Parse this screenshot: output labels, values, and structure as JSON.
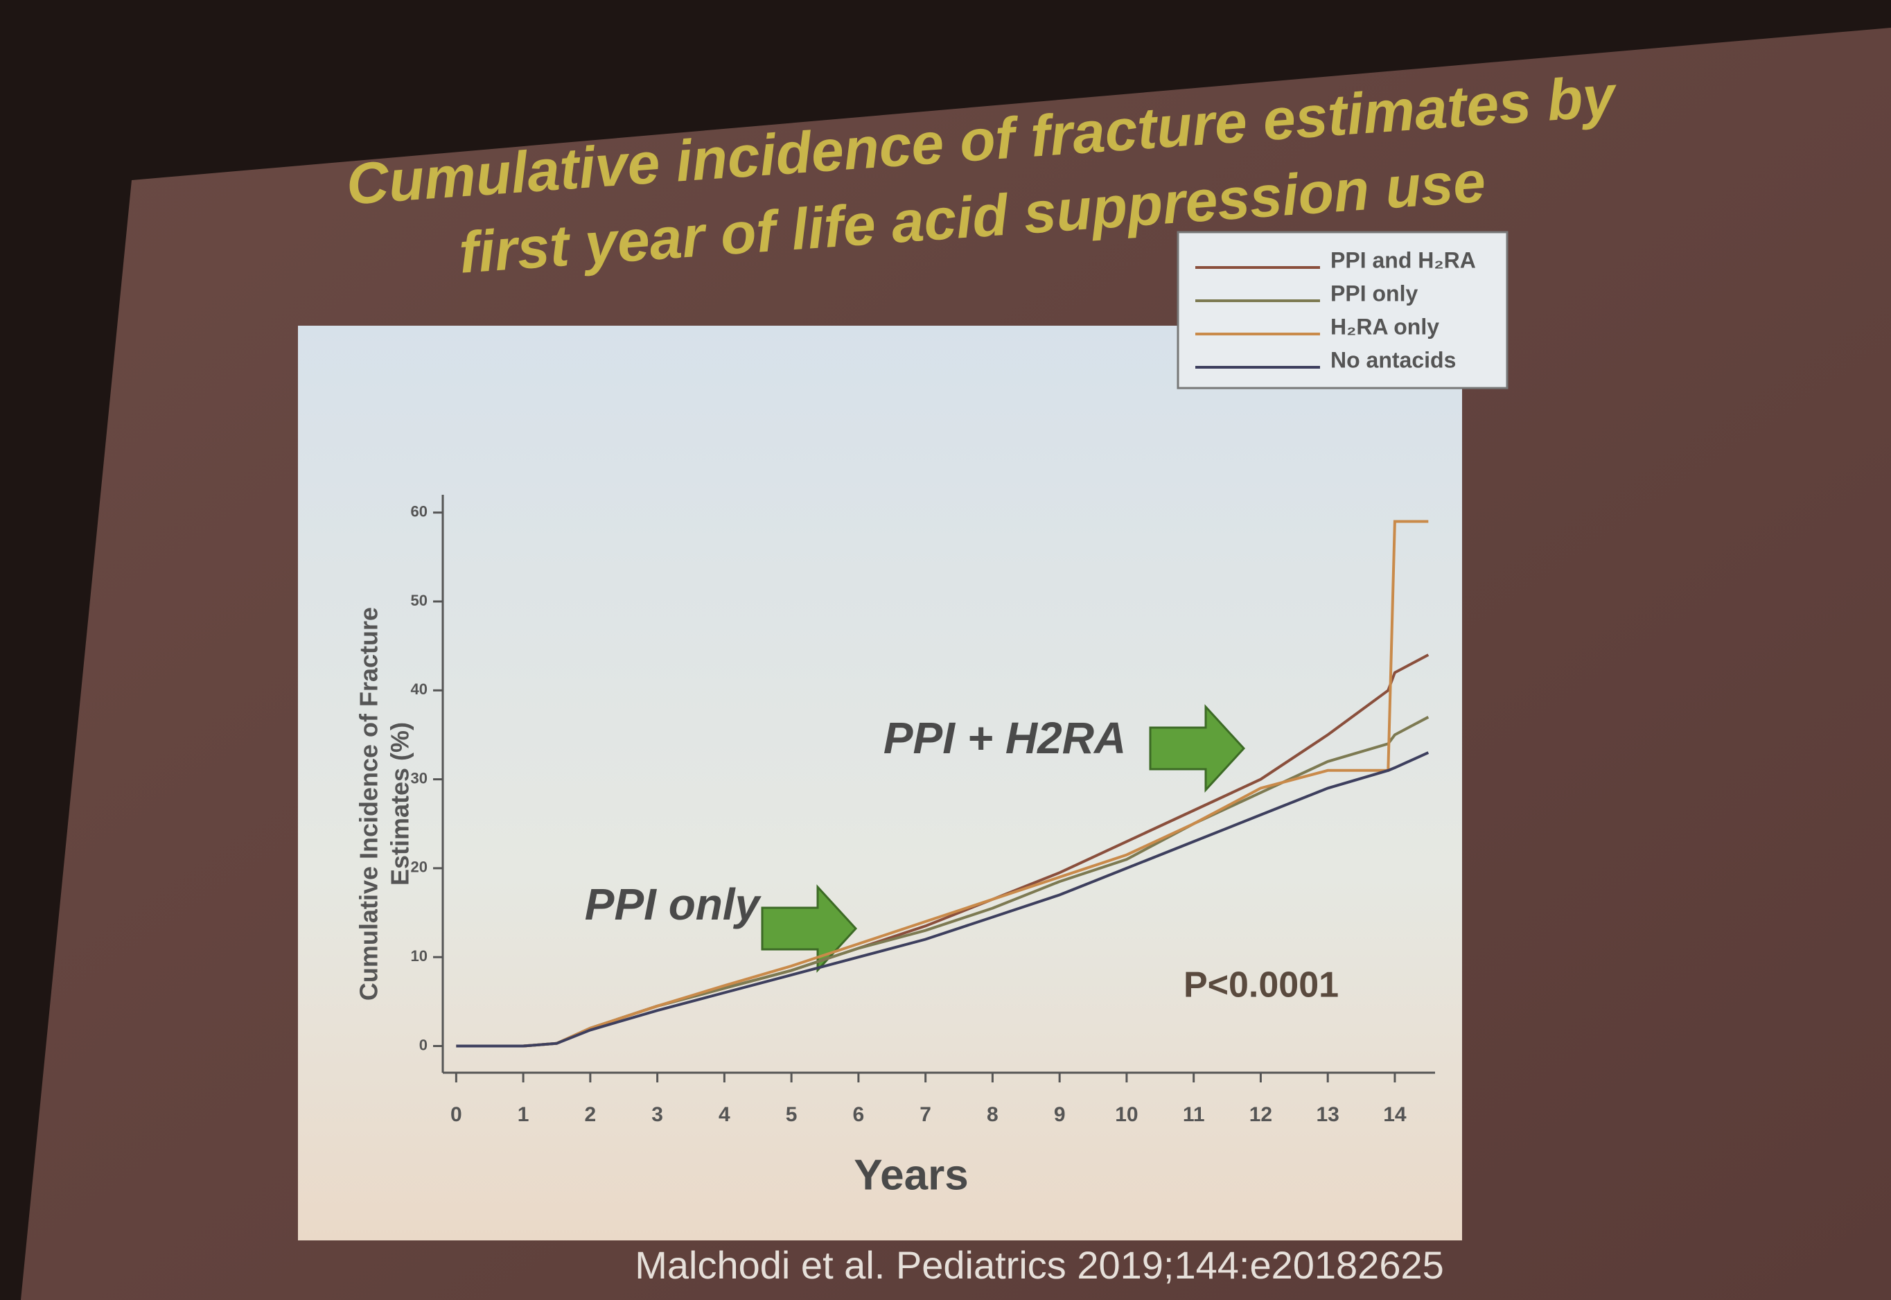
{
  "chart_data": {
    "type": "line",
    "title": [
      "Cumulative incidence of fracture estimates by",
      "first year of life acid suppression use"
    ],
    "x_label": "Years",
    "y_label": [
      "Cumulative Incidence of Fracture",
      "Estimates (%)"
    ],
    "annotations": [
      "PPI + H2RA",
      "PPI only",
      "P<0.0001"
    ],
    "citation": "Malchodi et al. Pediatrics 2019;144:e20182625",
    "x": [
      0,
      1,
      1.5,
      2,
      3,
      4,
      5,
      6,
      7,
      8,
      9,
      10,
      11,
      12,
      13,
      13.9,
      14,
      14.5
    ],
    "series": [
      {
        "name": "PPI and H₂RA",
        "color": "#8a4f3c",
        "values": [
          0,
          0,
          0.3,
          2,
          4.5,
          6.5,
          8.5,
          11,
          13.5,
          16.5,
          19.5,
          23,
          26.5,
          30,
          35,
          40,
          42,
          44
        ]
      },
      {
        "name": "PPI only",
        "color": "#7d7a52",
        "values": [
          0,
          0,
          0.3,
          2,
          4.5,
          6.5,
          8.5,
          11,
          13,
          15.5,
          18.5,
          21,
          25,
          28.5,
          32,
          34,
          35,
          37
        ]
      },
      {
        "name": "H₂RA only",
        "color": "#c98a4a",
        "values": [
          0,
          0,
          0.3,
          2,
          4.5,
          6.8,
          9,
          11.5,
          14,
          16.5,
          19,
          21.5,
          25,
          29,
          31,
          31,
          59,
          59
        ]
      },
      {
        "name": "No antacids",
        "color": "#3d3f5e",
        "values": [
          0,
          0,
          0.3,
          1.8,
          4,
          6,
          8,
          10,
          12,
          14.5,
          17,
          20,
          23,
          26,
          29,
          31,
          31.3,
          33
        ]
      }
    ],
    "xlim": [
      -0.2,
      14.6
    ],
    "ylim": [
      -3,
      62
    ],
    "xticks": [
      0,
      1,
      2,
      3,
      4,
      5,
      6,
      7,
      8,
      9,
      10,
      11,
      12,
      13,
      14
    ],
    "yticks": [
      0,
      10,
      20,
      30,
      40,
      50,
      60
    ],
    "legend": "top-right"
  }
}
